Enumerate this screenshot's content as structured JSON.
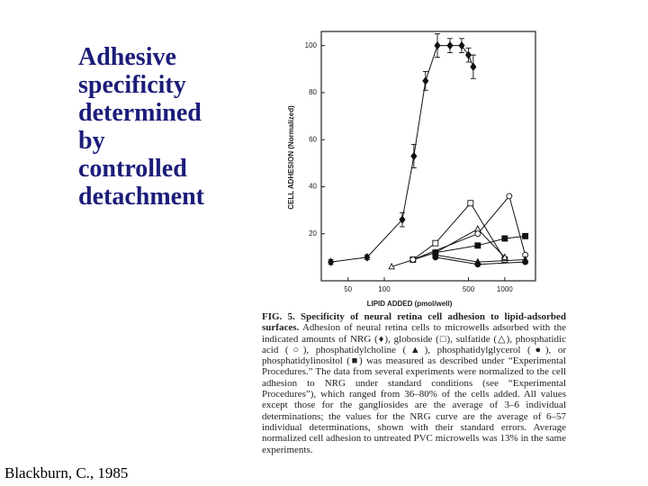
{
  "slide": {
    "title_lines": [
      "Adhesive",
      "specificity",
      "determined",
      "by",
      "controlled",
      "detachment"
    ],
    "citation": "Blackburn, C., 1985"
  },
  "caption": {
    "label": "FIG. 5.",
    "heading": "Specificity of neural retina cell adhesion to lipid-adsorbed surfaces.",
    "body": "Adhesion of neural retina cells to microwells adsorbed with the indicated amounts of NRG (♦), globoside (□), sulfatide (△), phosphatidic acid (○), phosphatidylcholine (▲), phosphatidylglycerol (●), or phosphatidylinositol (■) was measured as described under “Experimental Procedures.” The data from several experiments were normalized to the cell adhesion to NRG under standard conditions (see “Experimental Procedures”), which ranged from 36–80% of the cells added. All values except those for the gangliosides are the average of 3–6 individual determinations; the values for the NRG curve are the average of 6–57 individual determinations, shown with their standard errors. Average normalized cell adhesion to untreated PVC microwells was 13% in the same experiments."
  },
  "chart_data": {
    "type": "line",
    "x_label": "LIPID ADDED (pmol/well)",
    "y_label": "CELL ADHESION (Normalized)",
    "xscale": "log",
    "xlim": [
      30,
      1800
    ],
    "xticks": [
      50,
      100,
      500,
      1000
    ],
    "ylim": [
      0,
      106
    ],
    "yticks": [
      20,
      40,
      60,
      80,
      100
    ],
    "series": [
      {
        "marker": "diamond-filled",
        "color": "#111",
        "x": [
          36,
          72,
          141,
          176,
          220,
          276,
          351,
          439,
          500,
          548
        ],
        "values": [
          8,
          10,
          26,
          53,
          85,
          100,
          100,
          100,
          96,
          91
        ],
        "errors": [
          1,
          1,
          3,
          5,
          4,
          5,
          3,
          3,
          3,
          5
        ]
      },
      {
        "marker": "square-open",
        "color": "#111",
        "x": [
          173,
          266,
          520,
          1000
        ],
        "values": [
          9,
          16,
          33,
          9
        ]
      },
      {
        "marker": "triangle-open",
        "color": "#111",
        "x": [
          115,
          266,
          597,
          1000
        ],
        "values": [
          6,
          12,
          22,
          10
        ]
      },
      {
        "marker": "circle-open",
        "color": "#111",
        "x": [
          173,
          597,
          1090,
          1480
        ],
        "values": [
          9,
          20,
          36,
          11
        ]
      },
      {
        "marker": "triangle-filled",
        "color": "#111",
        "x": [
          266,
          597,
          1480
        ],
        "values": [
          11,
          8,
          9
        ]
      },
      {
        "marker": "circle-filled",
        "color": "#111",
        "x": [
          266,
          597,
          1480
        ],
        "values": [
          10,
          7,
          8
        ]
      },
      {
        "marker": "square-filled",
        "color": "#111",
        "x": [
          266,
          597,
          1000,
          1480
        ],
        "values": [
          12,
          15,
          18,
          19
        ]
      }
    ]
  }
}
